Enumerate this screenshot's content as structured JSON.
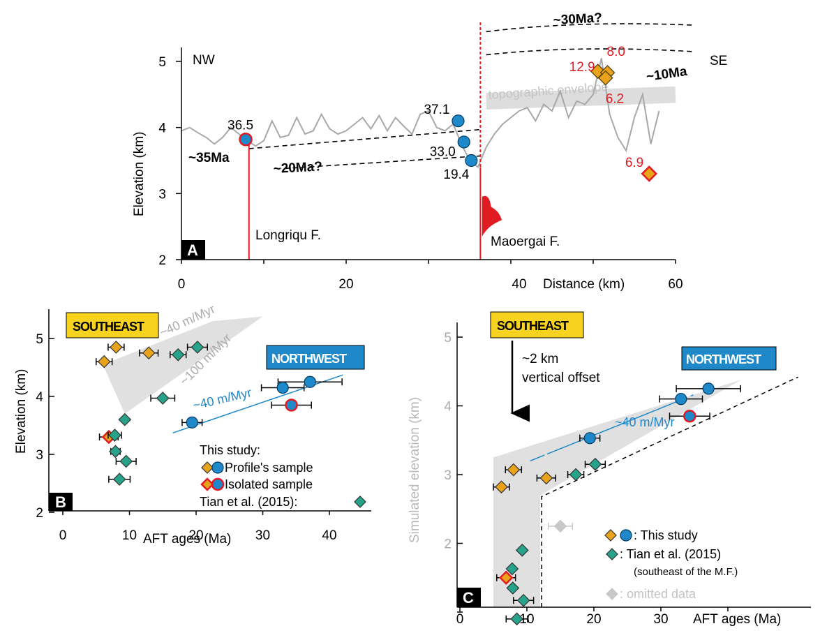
{
  "colors": {
    "orange": "#e8a31a",
    "teal": "#26a38a",
    "blue": "#1f88c9",
    "red": "#e11b22",
    "profile": "#a8a8a8",
    "envelope": "#cfcfcf",
    "shade": "#e0e0e0",
    "southeast_box": "#f7d21e",
    "northwest_box": "#1f88c9",
    "omitted": "#c8c8c8"
  },
  "panel_a": {
    "letter": "A",
    "ylabel": "Elevation (km)",
    "xlabel": "Distance (km)",
    "left_tag": "NW",
    "right_tag": "SE",
    "envelope_label": "topographic envelope",
    "fault_1": "Longriqu F.",
    "fault_2": "Maoergai F.",
    "age_35": "~35Ma",
    "age_20": "~20Ma?",
    "age_30": "~30Ma?",
    "age_10": "~10Ma",
    "x_ticks": [
      "0",
      "20",
      "40",
      "60"
    ],
    "y_ticks": [
      "2",
      "3",
      "4",
      "5"
    ]
  },
  "panel_b": {
    "letter": "B",
    "ylabel": "Elevation (km)",
    "xlabel": "AFT ages (Ma)",
    "southeast_label": "SOUTHEAST",
    "northwest_label": "NORTHWEST",
    "rate_se_1": "~40 m/Myr",
    "rate_se_2": "~100 m/Myr",
    "rate_nw": "~40 m/Myr",
    "legend_title": "This study:",
    "legend_profile": "Profile's sample",
    "legend_isolated": "Isolated sample",
    "legend_tian": "Tian et al. (2015):",
    "x_ticks": [
      "0",
      "10",
      "20",
      "30",
      "40"
    ],
    "y_ticks": [
      "2",
      "3",
      "4",
      "5"
    ]
  },
  "panel_c": {
    "letter": "C",
    "ylabel": "Simulated elevation (km)",
    "xlabel": "AFT ages (Ma)",
    "southeast_label": "SOUTHEAST",
    "northwest_label": "NORTHWEST",
    "offset_line1": "~2 km",
    "offset_line2": "vertical offset",
    "rate_nw": "~40 m/Myr",
    "legend_this": ": This study",
    "legend_tian": ": Tian et al. (2015)",
    "legend_tian_note": "(southeast of the M.F.)",
    "legend_omitted": ": omitted data",
    "x_ticks": [
      "0",
      "10",
      "20",
      "30"
    ],
    "y_ticks": [
      "2",
      "3",
      "4",
      "5"
    ]
  },
  "chart_data": [
    {
      "type": "line",
      "panel": "A",
      "xlabel": "Distance (km)",
      "ylabel": "Elevation (km)",
      "xlim": [
        0,
        60
      ],
      "ylim": [
        2,
        5.2
      ],
      "profile": {
        "x": [
          0,
          1,
          2,
          3,
          4,
          5,
          6,
          7,
          8,
          9,
          10,
          11,
          12,
          13,
          14,
          15,
          16,
          17,
          18,
          19,
          20,
          21,
          22,
          23,
          24,
          25,
          26,
          27,
          28,
          29,
          30,
          31,
          32,
          33,
          34,
          35,
          36,
          37,
          38,
          39,
          40,
          41,
          42,
          43,
          44,
          45,
          46,
          47,
          48,
          49,
          50,
          51,
          52,
          53,
          54,
          55,
          56,
          57,
          58
        ],
        "y": [
          3.95,
          4.0,
          3.92,
          3.85,
          3.75,
          3.85,
          4.0,
          3.9,
          3.8,
          3.72,
          3.8,
          4.1,
          3.85,
          3.88,
          4.15,
          3.9,
          3.95,
          4.2,
          3.98,
          3.9,
          3.95,
          4.05,
          4.15,
          3.98,
          4.18,
          3.95,
          4.15,
          4.02,
          3.9,
          4.2,
          4.25,
          4.0,
          3.95,
          4.05,
          3.75,
          3.5,
          3.4,
          3.7,
          3.9,
          4.05,
          4.15,
          4.25,
          4.3,
          4.1,
          4.35,
          4.25,
          4.55,
          4.15,
          4.4,
          4.35,
          4.5,
          5.05,
          4.2,
          3.85,
          3.65,
          4.15,
          4.5,
          3.75,
          4.25
        ]
      },
      "samples": [
        {
          "label": "36.5",
          "distance": 7.8,
          "elevation": 3.82,
          "kind": "isolated-circle"
        },
        {
          "label": "37.1",
          "distance": 33.6,
          "elevation": 4.1,
          "kind": "circle"
        },
        {
          "label": "33.0",
          "distance": 34.3,
          "elevation": 3.78,
          "kind": "circle"
        },
        {
          "label": "19.4",
          "distance": 35.2,
          "elevation": 3.5,
          "kind": "circle"
        },
        {
          "label": "12.9",
          "distance": 50.9,
          "elevation": 4.85,
          "kind": "diamond"
        },
        {
          "label": "8.0",
          "distance": 51.4,
          "elevation": 4.83,
          "kind": "diamond"
        },
        {
          "label": "6.2",
          "distance": 51.5,
          "elevation": 4.75,
          "kind": "diamond"
        },
        {
          "label": "6.9",
          "distance": 56.8,
          "elevation": 3.3,
          "kind": "isolated-diamond"
        }
      ],
      "faults": [
        {
          "name": "Longriqu F.",
          "distance": 8.2
        },
        {
          "name": "Maoergai F.",
          "distance": 36.3
        }
      ]
    },
    {
      "type": "scatter",
      "panel": "B",
      "xlabel": "AFT ages (Ma)",
      "ylabel": "Elevation (km)",
      "xlim": [
        0,
        45
      ],
      "ylim": [
        2,
        5.5
      ],
      "series": [
        {
          "name": "Profile's sample",
          "marker": "diamond",
          "color": "orange",
          "points": [
            {
              "x": 8.0,
              "y": 4.85,
              "err": 1.2
            },
            {
              "x": 6.2,
              "y": 4.6,
              "err": 1.2
            },
            {
              "x": 12.9,
              "y": 4.75,
              "err": 1.4
            }
          ]
        },
        {
          "name": "Profile's sample",
          "marker": "circle",
          "color": "blue",
          "points": [
            {
              "x": 37.1,
              "y": 4.25,
              "err": 4.8
            },
            {
              "x": 33.0,
              "y": 4.15,
              "err": 3.2
            },
            {
              "x": 19.4,
              "y": 3.55,
              "err": 1.5
            }
          ]
        },
        {
          "name": "Isolated sample",
          "marker": "diamond",
          "color": "orange",
          "points": [
            {
              "x": 6.9,
              "y": 3.3,
              "err": 1.4
            }
          ]
        },
        {
          "name": "Isolated sample",
          "marker": "circle",
          "color": "blue",
          "points": [
            {
              "x": 34.3,
              "y": 3.85,
              "err": 3.0
            }
          ]
        },
        {
          "name": "Tian et al. (2015):",
          "marker": "diamond",
          "color": "teal",
          "points": [
            {
              "x": 20.2,
              "y": 4.85,
              "err": 1.5
            },
            {
              "x": 17.3,
              "y": 4.72,
              "err": 1.2
            },
            {
              "x": 15.0,
              "y": 3.97,
              "err": 1.8
            },
            {
              "x": 9.3,
              "y": 3.6,
              "err": 0
            },
            {
              "x": 7.8,
              "y": 3.33,
              "err": 1.0
            },
            {
              "x": 7.9,
              "y": 3.05,
              "err": 0.7
            },
            {
              "x": 9.5,
              "y": 2.88,
              "err": 1.5
            },
            {
              "x": 8.5,
              "y": 2.57,
              "err": 1.6
            }
          ]
        }
      ],
      "fit_lines": [
        {
          "label": "~40 m/Myr",
          "from": [
            16.5,
            3.37
          ],
          "to": [
            42.0,
            4.37
          ]
        }
      ]
    },
    {
      "type": "scatter",
      "panel": "C",
      "xlabel": "AFT ages (Ma)",
      "ylabel": "Simulated elevation (km)",
      "xlim": [
        0,
        42
      ],
      "ylim": [
        0.5,
        5.5
      ],
      "series": [
        {
          "name": ": This study",
          "marker": "diamond",
          "color": "orange",
          "points": [
            {
              "x": 8.0,
              "y": 3.07,
              "err": 1.2
            },
            {
              "x": 6.2,
              "y": 2.82,
              "err": 1.2
            },
            {
              "x": 12.9,
              "y": 2.95,
              "err": 1.4
            },
            {
              "x": 6.9,
              "y": 1.5,
              "err": 1.4
            }
          ]
        },
        {
          "name": ": This study",
          "marker": "circle",
          "color": "blue",
          "points": [
            {
              "x": 37.1,
              "y": 4.25,
              "err": 4.8
            },
            {
              "x": 33.0,
              "y": 4.1,
              "err": 3.2
            },
            {
              "x": 19.4,
              "y": 3.53,
              "err": 1.5
            },
            {
              "x": 34.3,
              "y": 3.85,
              "err": 3.0
            }
          ]
        },
        {
          "name": ": Tian et al. (2015)",
          "marker": "diamond",
          "color": "teal",
          "points": [
            {
              "x": 20.2,
              "y": 3.15,
              "err": 1.5
            },
            {
              "x": 17.3,
              "y": 3.0,
              "err": 1.2
            },
            {
              "x": 9.3,
              "y": 1.9,
              "err": 0
            },
            {
              "x": 7.8,
              "y": 1.63,
              "err": 0
            },
            {
              "x": 7.9,
              "y": 1.35,
              "err": 0
            },
            {
              "x": 9.5,
              "y": 1.17,
              "err": 1.5
            },
            {
              "x": 8.5,
              "y": 0.9,
              "err": 1.6
            }
          ]
        },
        {
          "name": ": omitted data",
          "marker": "diamond",
          "color": "omitted",
          "points": [
            {
              "x": 15.0,
              "y": 2.25,
              "err": 1.8
            }
          ]
        }
      ],
      "fit_lines": [
        {
          "label": "~40 m/Myr",
          "from": [
            10.5,
            3.2
          ],
          "to": [
            40.5,
            4.38
          ]
        }
      ]
    }
  ]
}
